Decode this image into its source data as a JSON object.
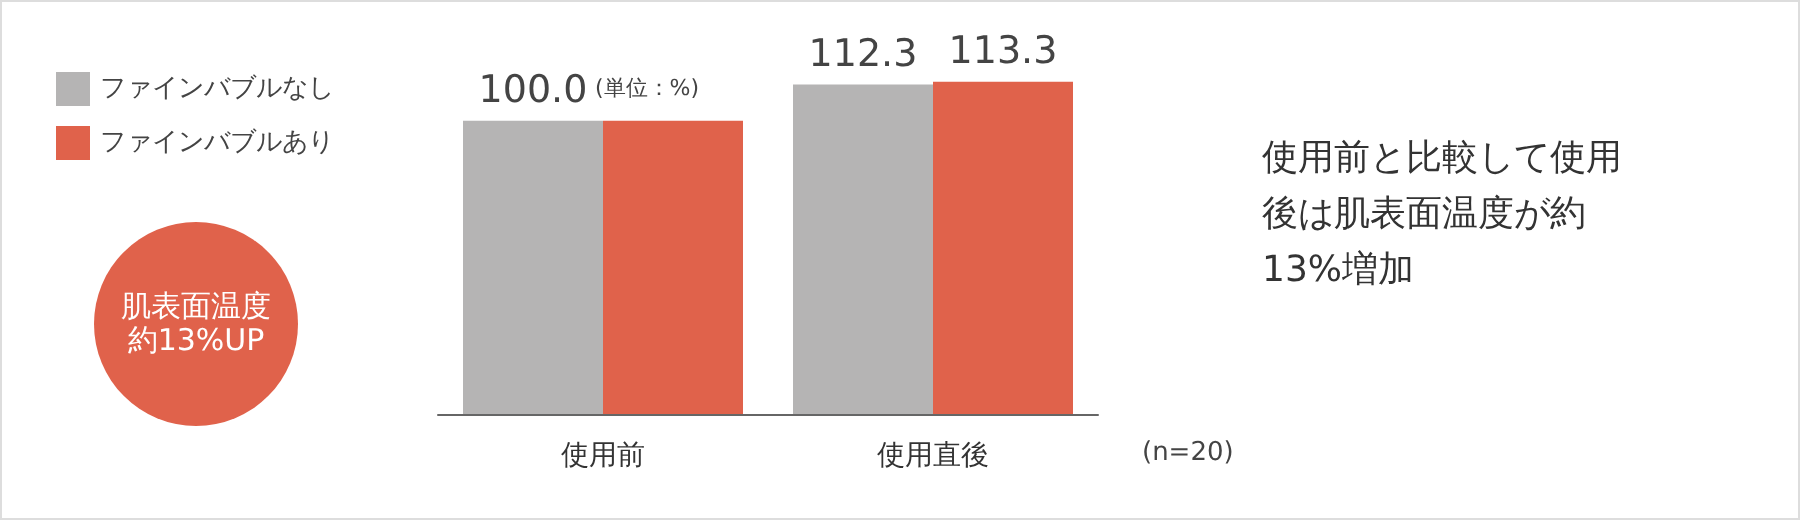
{
  "chart_data": {
    "type": "bar",
    "categories": [
      "使用前",
      "使用直後"
    ],
    "series": [
      {
        "name": "ファインバブルなし",
        "color": "#b5b4b4",
        "values": [
          100.0,
          112.3
        ],
        "value_labels": [
          "100.0",
          "112.3"
        ]
      },
      {
        "name": "ファインバブルあり",
        "color": "#e0624b",
        "values": [
          100.0,
          113.3
        ],
        "value_labels": [
          null,
          "113.3"
        ]
      }
    ],
    "tick_labels": "x",
    "legend": "top left",
    "annotations": [
      "(単位：%)",
      "(n=20)",
      "使用前と比較して使用後は肌表面温度が約13%増加",
      "肌表面温度約13%UP"
    ]
  }
}
